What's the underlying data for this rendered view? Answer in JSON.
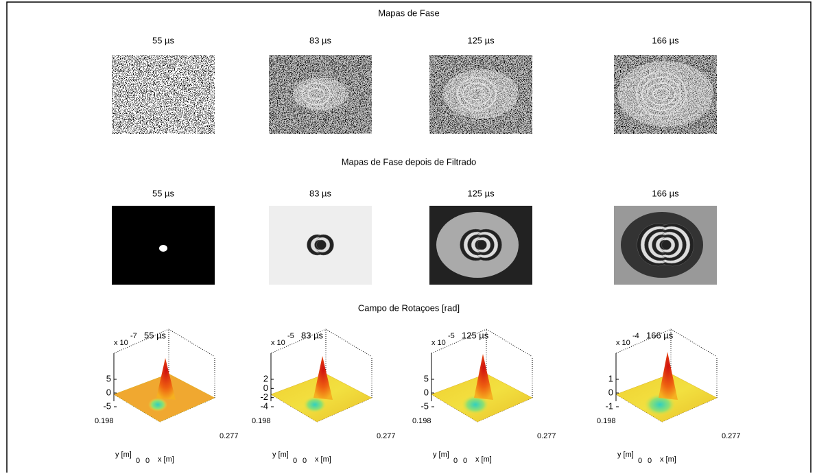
{
  "header": {
    "title": "Mapas de Fase"
  },
  "raw_maps": {
    "panels": [
      {
        "title": "55 µs"
      },
      {
        "title": "83 µs"
      },
      {
        "title": "125 µs"
      },
      {
        "title": "166 µs"
      }
    ]
  },
  "filtered_maps": {
    "title": "Mapas de Fase depois de Filtrado",
    "panels": [
      {
        "title": "55 µs"
      },
      {
        "title": "83 µs"
      },
      {
        "title": "125 µs"
      },
      {
        "title": "166 µs"
      }
    ]
  },
  "rotation_fields": {
    "title": "Campo de Rotaçoes [rad]",
    "y_label": "y [m]",
    "x_label": "x [m]",
    "y_tick": "0.198",
    "x_tick": "0.277",
    "origin_ticks": [
      "0",
      "0"
    ],
    "panels": [
      {
        "title": "55 µs",
        "scale_base": "x 10",
        "scale_exponent": "-7",
        "z_ticks": [
          "5",
          "0",
          "-5"
        ]
      },
      {
        "title": "83 µs",
        "scale_base": "x 10",
        "scale_exponent": "-5",
        "z_ticks": [
          "2",
          "0",
          "-2",
          "-4"
        ]
      },
      {
        "title": "125 µs",
        "scale_base": "x 10",
        "scale_exponent": "-5",
        "z_ticks": [
          "5",
          "0",
          "-5"
        ]
      },
      {
        "title": "166 µs",
        "scale_base": "x 10",
        "scale_exponent": "-4",
        "z_ticks": [
          "1",
          "0",
          "-1"
        ]
      }
    ]
  }
}
